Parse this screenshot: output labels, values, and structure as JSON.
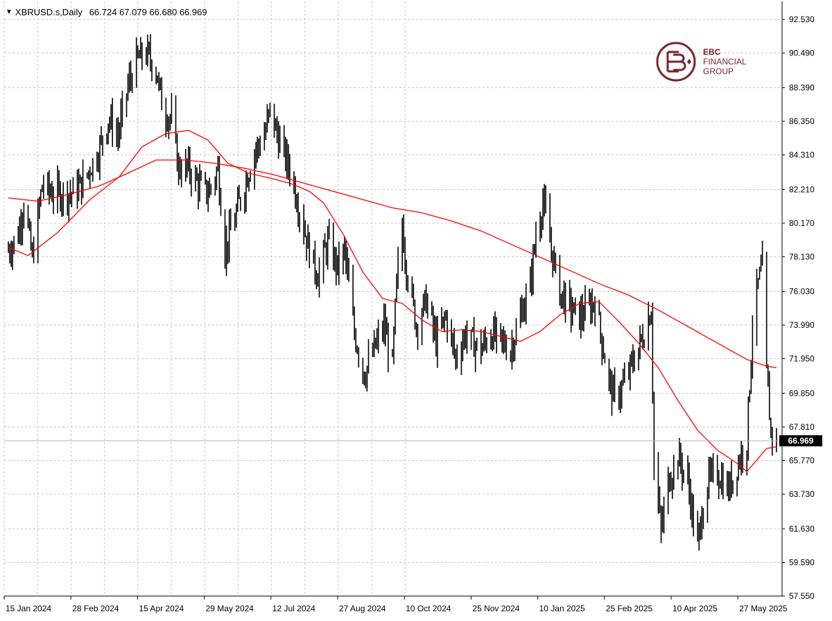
{
  "header": {
    "symbol": "XBRUSD.s,Daily",
    "ohlc": "66.724 67.079 66.680 66.969"
  },
  "logo": {
    "line1": "EBC",
    "line2": "FINANCIAL",
    "line3": "GROUP",
    "color": "#7a2230"
  },
  "colors": {
    "bars": "#000000",
    "ma": "#ff0000",
    "grid": "#c8c8c8",
    "current_price_line": "#b4b4b4"
  },
  "current_price": {
    "value": 66.969,
    "label": "66.969"
  },
  "chart_data": {
    "type": "ohlc",
    "title": "XBRUSD.s,Daily",
    "grid": true,
    "ylim": [
      57.55,
      92.53
    ],
    "y_ticks": [
      "92.530",
      "90.490",
      "88.390",
      "86.350",
      "84.310",
      "82.210",
      "80.170",
      "78.130",
      "76.030",
      "73.990",
      "71.950",
      "69.850",
      "67.810",
      "65.770",
      "63.730",
      "61.630",
      "59.590",
      "57.550"
    ],
    "x_labels": [
      "15 Jan 2024",
      "28 Feb 2024",
      "15 Apr 2024",
      "29 May 2024",
      "12 Jul 2024",
      "27 Aug 2024",
      "10 Oct 2024",
      "25 Nov 2024",
      "10 Jan 2025",
      "25 Feb 2025",
      "10 Apr 2025",
      "27 May 2025"
    ],
    "close_path": [
      [
        "2024-01-01",
        78.5
      ],
      [
        "2024-01-08",
        79.5
      ],
      [
        "2024-01-12",
        81.5
      ],
      [
        "2024-01-18",
        78.0
      ],
      [
        "2024-01-25",
        82.5
      ],
      [
        "2024-02-01",
        82.0
      ],
      [
        "2024-02-08",
        82.0
      ],
      [
        "2024-02-15",
        82.0
      ],
      [
        "2024-02-22",
        82.5
      ],
      [
        "2024-02-28",
        83.5
      ],
      [
        "2024-03-05",
        84.5
      ],
      [
        "2024-03-12",
        86.5
      ],
      [
        "2024-03-19",
        85.5
      ],
      [
        "2024-03-26",
        88.5
      ],
      [
        "2024-04-01",
        90.0
      ],
      [
        "2024-04-08",
        90.5
      ],
      [
        "2024-04-15",
        89.5
      ],
      [
        "2024-04-20",
        87.0
      ],
      [
        "2024-04-26",
        86.5
      ],
      [
        "2024-05-01",
        83.5
      ],
      [
        "2024-05-08",
        83.5
      ],
      [
        "2024-05-15",
        82.5
      ],
      [
        "2024-05-22",
        82.0
      ],
      [
        "2024-05-29",
        83.5
      ],
      [
        "2024-06-03",
        78.5
      ],
      [
        "2024-06-10",
        80.5
      ],
      [
        "2024-06-17",
        82.5
      ],
      [
        "2024-06-24",
        84.5
      ],
      [
        "2024-07-01",
        85.5
      ],
      [
        "2024-07-05",
        87.0
      ],
      [
        "2024-07-12",
        85.0
      ],
      [
        "2024-07-19",
        83.5
      ],
      [
        "2024-07-26",
        81.0
      ],
      [
        "2024-08-02",
        78.5
      ],
      [
        "2024-08-08",
        77.0
      ],
      [
        "2024-08-15",
        79.0
      ],
      [
        "2024-08-22",
        77.5
      ],
      [
        "2024-08-27",
        78.5
      ],
      [
        "2024-09-03",
        73.5
      ],
      [
        "2024-09-10",
        71.0
      ],
      [
        "2024-09-17",
        72.5
      ],
      [
        "2024-09-24",
        74.0
      ],
      [
        "2024-09-30",
        71.5
      ],
      [
        "2024-10-03",
        76.5
      ],
      [
        "2024-10-07",
        80.0
      ],
      [
        "2024-10-10",
        77.5
      ],
      [
        "2024-10-17",
        74.0
      ],
      [
        "2024-10-24",
        75.5
      ],
      [
        "2024-10-31",
        73.0
      ],
      [
        "2024-11-07",
        74.5
      ],
      [
        "2024-11-14",
        72.0
      ],
      [
        "2024-11-21",
        73.5
      ],
      [
        "2024-11-25",
        73.0
      ],
      [
        "2024-12-02",
        72.5
      ],
      [
        "2024-12-09",
        73.5
      ],
      [
        "2024-12-16",
        73.0
      ],
      [
        "2024-12-23",
        72.5
      ],
      [
        "2024-12-30",
        74.5
      ],
      [
        "2025-01-06",
        76.5
      ],
      [
        "2025-01-10",
        79.5
      ],
      [
        "2025-01-15",
        81.5
      ],
      [
        "2025-01-20",
        79.0
      ],
      [
        "2025-01-27",
        76.0
      ],
      [
        "2025-02-03",
        75.0
      ],
      [
        "2025-02-10",
        74.5
      ],
      [
        "2025-02-17",
        75.0
      ],
      [
        "2025-02-21",
        75.5
      ],
      [
        "2025-02-25",
        73.5
      ],
      [
        "2025-03-03",
        70.5
      ],
      [
        "2025-03-07",
        69.5
      ],
      [
        "2025-03-14",
        70.5
      ],
      [
        "2025-03-21",
        72.0
      ],
      [
        "2025-03-28",
        73.5
      ],
      [
        "2025-04-02",
        75.0
      ],
      [
        "2025-04-04",
        65.5
      ],
      [
        "2025-04-09",
        61.5
      ],
      [
        "2025-04-14",
        64.5
      ],
      [
        "2025-04-21",
        66.0
      ],
      [
        "2025-04-28",
        64.5
      ],
      [
        "2025-05-05",
        60.5
      ],
      [
        "2025-05-08",
        62.5
      ],
      [
        "2025-05-12",
        64.5
      ],
      [
        "2025-05-19",
        65.0
      ],
      [
        "2025-05-27",
        64.0
      ],
      [
        "2025-06-02",
        65.5
      ],
      [
        "2025-06-09",
        67.0
      ],
      [
        "2025-06-13",
        74.0
      ],
      [
        "2025-06-17",
        76.5
      ],
      [
        "2025-06-20",
        77.5
      ],
      [
        "2025-06-23",
        71.0
      ],
      [
        "2025-06-26",
        67.5
      ],
      [
        "2025-06-30",
        66.97
      ]
    ],
    "series": [
      {
        "type": "ma_fast",
        "points": [
          [
            "2024-01-01",
            78.7
          ],
          [
            "2024-01-15",
            78.2
          ],
          [
            "2024-02-05",
            79.6
          ],
          [
            "2024-02-28",
            81.6
          ],
          [
            "2024-03-20",
            83.0
          ],
          [
            "2024-04-05",
            84.8
          ],
          [
            "2024-04-22",
            85.6
          ],
          [
            "2024-05-08",
            85.8
          ],
          [
            "2024-05-22",
            85.2
          ],
          [
            "2024-06-05",
            83.8
          ],
          [
            "2024-06-20",
            83.2
          ],
          [
            "2024-07-05",
            82.9
          ],
          [
            "2024-07-19",
            82.6
          ],
          [
            "2024-08-02",
            82.1
          ],
          [
            "2024-08-12",
            81.4
          ],
          [
            "2024-08-26",
            79.5
          ],
          [
            "2024-09-09",
            77.2
          ],
          [
            "2024-09-23",
            75.6
          ],
          [
            "2024-10-07",
            75.3
          ],
          [
            "2024-10-21",
            74.3
          ],
          [
            "2024-11-04",
            73.6
          ],
          [
            "2024-11-18",
            73.7
          ],
          [
            "2024-12-02",
            73.6
          ],
          [
            "2024-12-16",
            73.3
          ],
          [
            "2024-12-30",
            73.0
          ],
          [
            "2025-01-13",
            73.6
          ],
          [
            "2025-01-27",
            74.6
          ],
          [
            "2025-02-10",
            75.3
          ],
          [
            "2025-02-24",
            75.4
          ],
          [
            "2025-03-10",
            74.2
          ],
          [
            "2025-03-24",
            72.9
          ],
          [
            "2025-04-07",
            71.4
          ],
          [
            "2025-04-21",
            69.4
          ],
          [
            "2025-05-05",
            67.6
          ],
          [
            "2025-05-19",
            66.4
          ],
          [
            "2025-06-02",
            65.6
          ],
          [
            "2025-06-09",
            65.1
          ],
          [
            "2025-06-16",
            65.8
          ],
          [
            "2025-06-23",
            66.5
          ],
          [
            "2025-06-30",
            66.6
          ]
        ]
      },
      {
        "type": "ma_slow",
        "points": [
          [
            "2024-01-01",
            81.7
          ],
          [
            "2024-01-22",
            81.5
          ],
          [
            "2024-02-12",
            81.9
          ],
          [
            "2024-03-05",
            82.4
          ],
          [
            "2024-03-26",
            83.2
          ],
          [
            "2024-04-15",
            84.0
          ],
          [
            "2024-05-06",
            84.0
          ],
          [
            "2024-05-27",
            83.8
          ],
          [
            "2024-06-17",
            83.5
          ],
          [
            "2024-07-08",
            83.1
          ],
          [
            "2024-07-29",
            82.6
          ],
          [
            "2024-08-19",
            82.1
          ],
          [
            "2024-09-09",
            81.6
          ],
          [
            "2024-09-30",
            81.1
          ],
          [
            "2024-10-21",
            80.8
          ],
          [
            "2024-11-11",
            80.3
          ],
          [
            "2024-12-02",
            79.7
          ],
          [
            "2024-12-23",
            78.9
          ],
          [
            "2025-01-13",
            78.1
          ],
          [
            "2025-02-03",
            77.3
          ],
          [
            "2025-02-24",
            76.5
          ],
          [
            "2025-03-17",
            75.8
          ],
          [
            "2025-04-07",
            74.9
          ],
          [
            "2025-04-28",
            73.9
          ],
          [
            "2025-05-19",
            72.9
          ],
          [
            "2025-06-09",
            71.9
          ],
          [
            "2025-06-23",
            71.5
          ],
          [
            "2025-06-30",
            71.4
          ]
        ]
      }
    ]
  }
}
